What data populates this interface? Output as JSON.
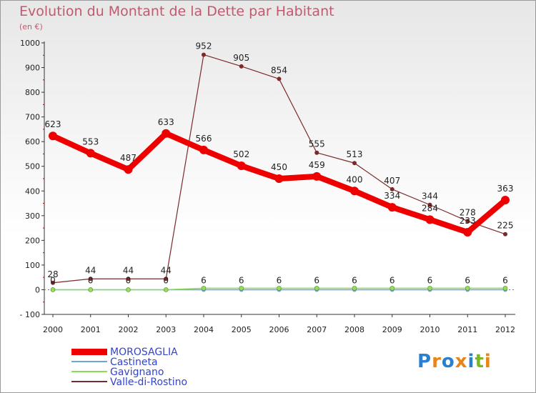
{
  "chart_data": {
    "type": "line",
    "title": "Evolution du Montant de la Dette par Habitant",
    "ylabel": "(en €)",
    "xlabel": "",
    "categories": [
      "2000",
      "2001",
      "2002",
      "2003",
      "2004",
      "2005",
      "2006",
      "2007",
      "2008",
      "2009",
      "2010",
      "2011",
      "2012"
    ],
    "yticks": [
      -100,
      0,
      100,
      200,
      300,
      400,
      500,
      600,
      700,
      800,
      900,
      1000
    ],
    "ylim": [
      -100,
      1000
    ],
    "grid": false,
    "legend_position": "bottom-left",
    "series": [
      {
        "name": "MOROSAGLIA",
        "color": "#ee0000",
        "values": [
          623,
          553,
          487,
          633,
          566,
          502,
          450,
          459,
          400,
          334,
          284,
          233,
          363
        ],
        "labels": [
          "623",
          "553",
          "487",
          "633",
          "566",
          "502",
          "450",
          "459",
          "400",
          "334",
          "284",
          "233",
          "363"
        ]
      },
      {
        "name": "Castineta",
        "color": "#6ea6d8",
        "values": [
          0,
          0,
          0,
          0,
          0,
          0,
          0,
          0,
          0,
          0,
          0,
          0,
          0
        ],
        "labels": []
      },
      {
        "name": "Gavignano",
        "color": "#88dd55",
        "values": [
          0,
          0,
          0,
          0,
          6,
          6,
          6,
          6,
          6,
          6,
          6,
          6,
          6
        ],
        "labels": []
      },
      {
        "name": "Valle-di-Rostino",
        "color": "#7a2a2a",
        "values": [
          28,
          44,
          44,
          44,
          952,
          905,
          854,
          555,
          513,
          407,
          344,
          278,
          225
        ],
        "labels": [
          "28",
          "44",
          "44",
          "44",
          "952",
          "905",
          "854",
          "555",
          "513",
          "407",
          "344",
          "278",
          "225"
        ]
      }
    ],
    "extra_labels": [
      "0",
      "0",
      "0",
      "0",
      "6",
      "6",
      "6",
      "6",
      "6",
      "6",
      "6",
      "6",
      "6"
    ]
  },
  "brand": {
    "logo_text": "Proxiti"
  }
}
